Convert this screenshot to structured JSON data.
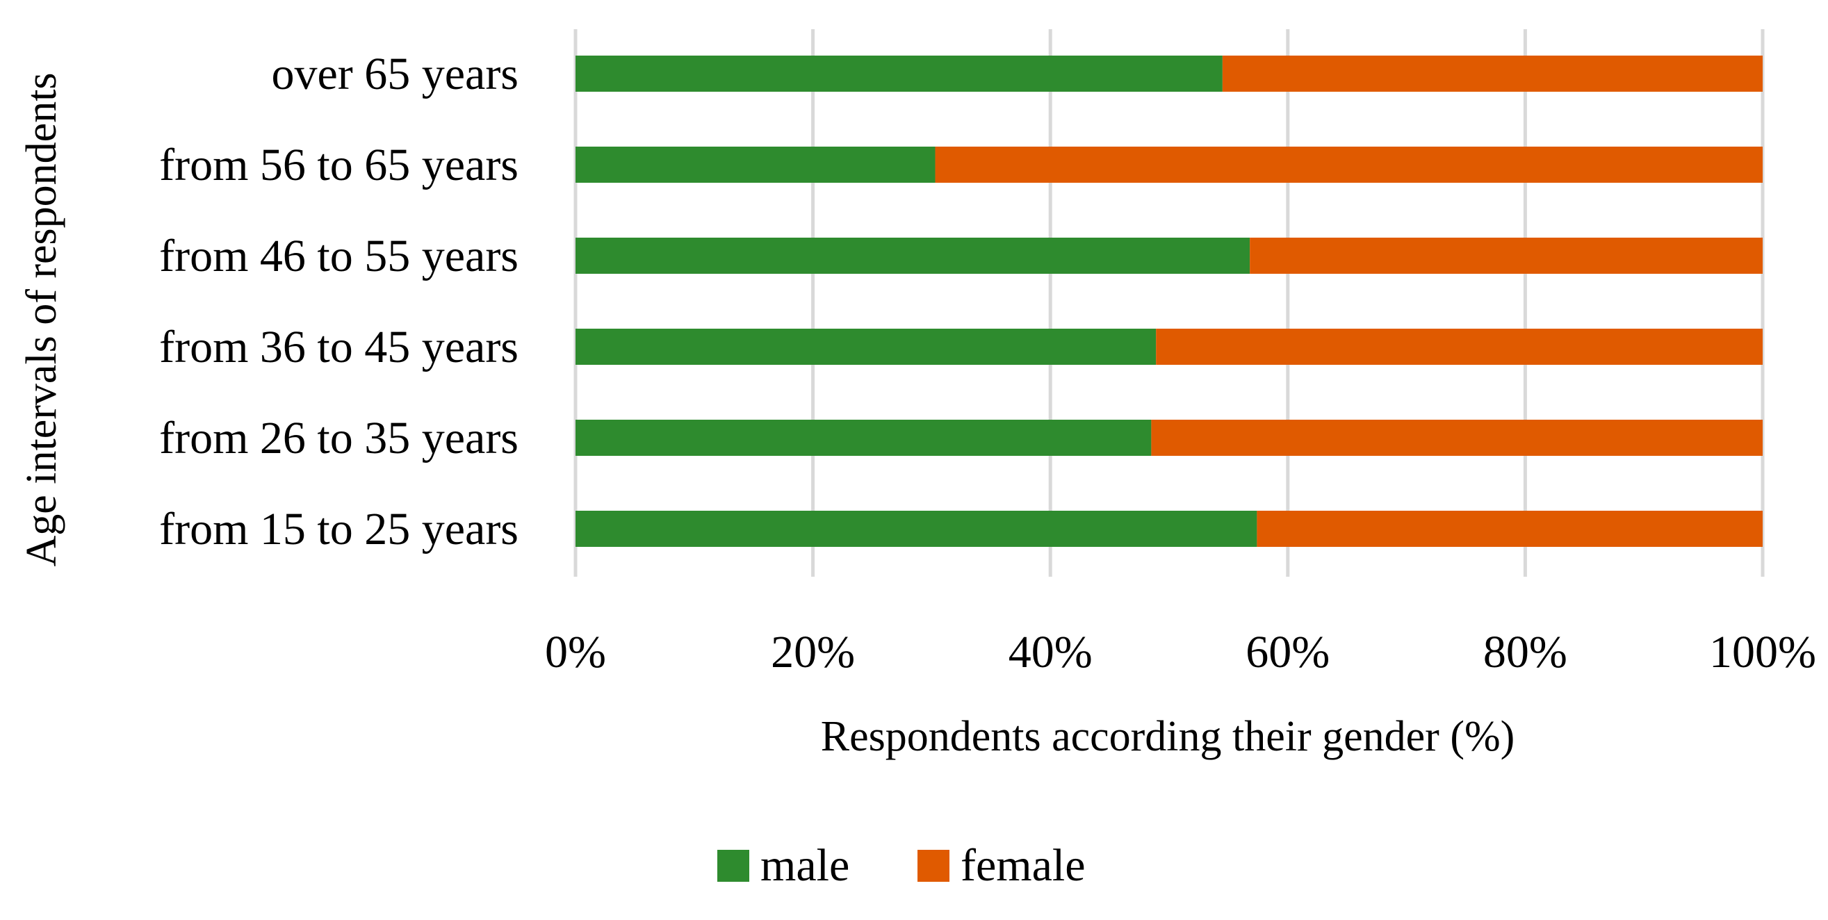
{
  "chart_data": {
    "type": "bar",
    "orientation": "horizontal",
    "stacked": "percent",
    "categories": [
      "over 65 years",
      "from 56 to 65 years",
      "from 46 to 55 years",
      "from 36 to 45 years",
      "from 26 to 35 years",
      "from 15 to 25 years"
    ],
    "series": [
      {
        "name": "male",
        "color": "#2e8b2e",
        "values": [
          54.5,
          30.3,
          56.8,
          48.9,
          48.5,
          57.4
        ]
      },
      {
        "name": "female",
        "color": "#e05a00",
        "values": [
          45.5,
          69.7,
          43.2,
          51.1,
          51.5,
          42.6
        ]
      }
    ],
    "xlim": [
      0,
      100
    ],
    "xticks": [
      "0%",
      "20%",
      "40%",
      "60%",
      "80%",
      "100%"
    ],
    "xlabel": "Respondents according their gender (%)",
    "ylabel": "Age intervals of respondents",
    "grid": true,
    "legend_position": "bottom-center",
    "gridline_color": "#d9d9d9"
  }
}
